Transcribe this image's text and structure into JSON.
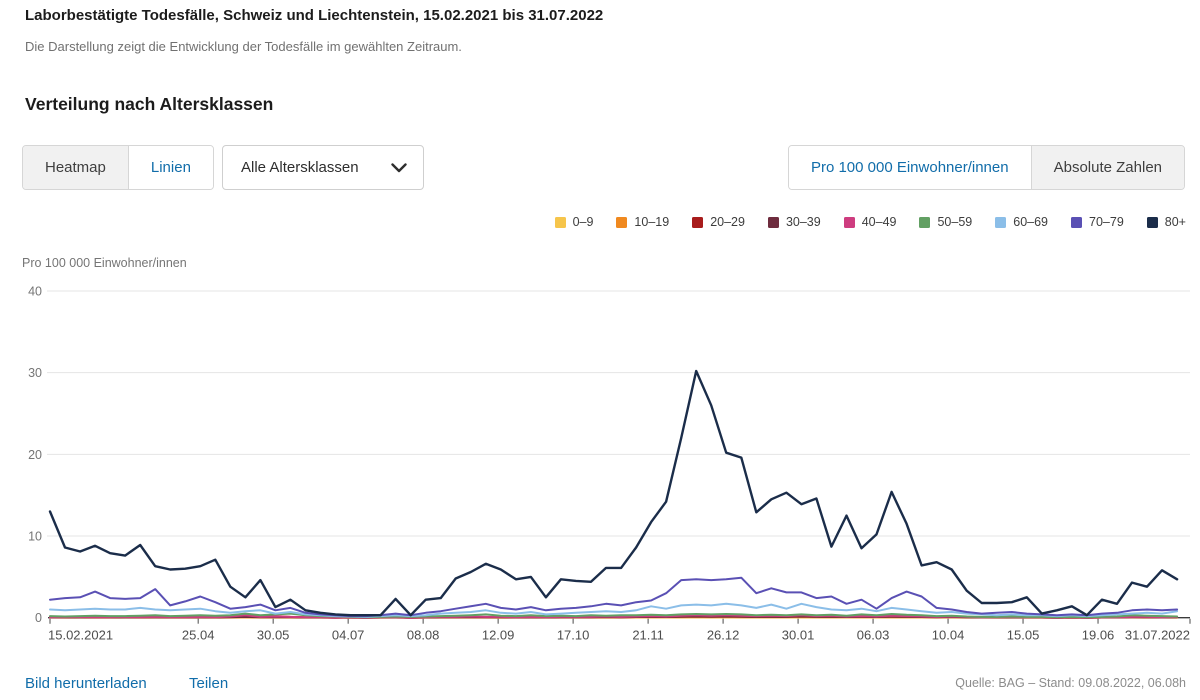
{
  "header": {
    "title": "Laborbestätigte Todesfälle, Schweiz und Liechtenstein, 15.02.2021 bis 31.07.2022",
    "subtitle": "Die Darstellung zeigt die Entwicklung der Todesfälle im gewählten Zeitraum."
  },
  "section": {
    "heading": "Verteilung nach Altersklassen"
  },
  "controls": {
    "view_toggle": [
      {
        "label": "Heatmap",
        "selected": false
      },
      {
        "label": "Linien",
        "selected": true
      }
    ],
    "age_filter": {
      "value": "Alle Altersklassen"
    },
    "unit_toggle": [
      {
        "label": "Pro 100 000 Einwohner/innen",
        "selected": true
      },
      {
        "label": "Absolute Zahlen",
        "selected": false
      }
    ]
  },
  "footer": {
    "download_label": "Bild herunterladen",
    "share_label": "Teilen",
    "source": "Quelle: BAG – Stand: 09.08.2022, 06.08h"
  },
  "colors": {
    "accent_blue": "#116daa",
    "inactive_bg": "#f1f1f1",
    "border": "#d6d6d6",
    "grid": "#e4e4e4",
    "axis": "#3a3a3a",
    "y_tick_text": "#757575",
    "x_tick_text": "#4d4d4d"
  },
  "chart_data": {
    "type": "line",
    "title": "Verteilung nach Altersklassen",
    "xlabel": "",
    "ylabel": "Pro 100 000 Einwohner/innen",
    "ylim": [
      0,
      40
    ],
    "yticks": [
      0,
      10,
      20,
      30,
      40
    ],
    "grid": "horizontal",
    "legend_position": "top-right",
    "weeks_total": 75.86,
    "x_ticks": [
      {
        "week": 0,
        "label": "15.02.2021"
      },
      {
        "week": 9.86,
        "label": "25.04"
      },
      {
        "week": 14.85,
        "label": "30.05"
      },
      {
        "week": 19.84,
        "label": "04.07"
      },
      {
        "week": 24.83,
        "label": "08.08"
      },
      {
        "week": 29.82,
        "label": "12.09"
      },
      {
        "week": 34.81,
        "label": "17.10"
      },
      {
        "week": 39.8,
        "label": "21.11"
      },
      {
        "week": 44.79,
        "label": "26.12"
      },
      {
        "week": 49.78,
        "label": "30.01"
      },
      {
        "week": 54.77,
        "label": "06.03"
      },
      {
        "week": 59.76,
        "label": "10.04"
      },
      {
        "week": 64.75,
        "label": "15.05"
      },
      {
        "week": 69.74,
        "label": "19.06"
      },
      {
        "week": 75.86,
        "label": "31.07.2022"
      }
    ],
    "series": [
      {
        "name": "0–9",
        "color": "#F6C54B",
        "values": [
          0.01,
          0,
          0.01,
          0,
          0,
          0.01,
          0,
          0.01,
          0,
          0,
          0.01,
          0,
          0.01,
          0.02,
          0.01,
          0.01,
          0.01,
          0,
          0,
          0,
          0,
          0,
          0,
          0.01,
          0,
          0,
          0.01,
          0.01,
          0.01,
          0.01,
          0,
          0,
          0.01,
          0,
          0.01,
          0.01,
          0.01,
          0.01,
          0.01,
          0.02,
          0.02,
          0.02,
          0.03,
          0.03,
          0.03,
          0.03,
          0.03,
          0.02,
          0.02,
          0.02,
          0.03,
          0.02,
          0.02,
          0.02,
          0.02,
          0.02,
          0.03,
          0.02,
          0.02,
          0.01,
          0.02,
          0.01,
          0.01,
          0,
          0.01,
          0,
          0,
          0,
          0,
          0,
          0.01,
          0.01,
          0.02,
          0.01,
          0.01,
          0.01
        ]
      },
      {
        "name": "10–19",
        "color": "#F0891F",
        "values": [
          0.02,
          0.02,
          0.03,
          0.02,
          0.02,
          0.03,
          0.02,
          0.03,
          0.02,
          0.02,
          0.03,
          0.02,
          0.03,
          0.05,
          0.03,
          0.03,
          0.03,
          0.02,
          0.02,
          0,
          0.02,
          0,
          0.02,
          0.02,
          0,
          0.02,
          0.02,
          0.03,
          0.03,
          0.03,
          0.02,
          0.02,
          0.03,
          0.02,
          0.02,
          0.03,
          0.03,
          0.03,
          0.03,
          0.05,
          0.05,
          0.05,
          0.06,
          0.08,
          0.06,
          0.08,
          0.06,
          0.05,
          0.06,
          0.05,
          0.08,
          0.05,
          0.06,
          0.05,
          0.05,
          0.05,
          0.06,
          0.05,
          0.05,
          0.03,
          0.05,
          0.03,
          0.02,
          0.02,
          0.03,
          0.02,
          0.02,
          0,
          0.02,
          0,
          0.02,
          0.02,
          0.03,
          0.03,
          0.02,
          0.03
        ]
      },
      {
        "name": "20–29",
        "color": "#A81C1C",
        "values": [
          0.05,
          0.02,
          0.05,
          0.05,
          0.02,
          0.05,
          0.05,
          0.08,
          0.02,
          0.05,
          0.05,
          0.05,
          0.1,
          0.35,
          0.1,
          0.2,
          0.1,
          0.05,
          0.02,
          0.02,
          0.02,
          0,
          0.02,
          0.05,
          0,
          0.02,
          0.05,
          0.05,
          0.08,
          0.05,
          0.05,
          0.02,
          0.05,
          0.02,
          0.05,
          0.05,
          0.05,
          0.08,
          0.05,
          0.08,
          0.1,
          0.1,
          0.15,
          0.2,
          0.15,
          0.2,
          0.15,
          0.1,
          0.15,
          0.1,
          0.3,
          0.15,
          0.2,
          0.1,
          0.15,
          0.1,
          0.2,
          0.15,
          0.1,
          0.08,
          0.1,
          0.05,
          0.05,
          0.02,
          0.05,
          0.02,
          0.02,
          0,
          0.02,
          0,
          0.02,
          0.05,
          0.08,
          0.05,
          0.05,
          0.05
        ]
      },
      {
        "name": "30–39",
        "color": "#6E2C3E",
        "values": [
          0.02,
          0.02,
          0.05,
          0.02,
          0.02,
          0.05,
          0.02,
          0.05,
          0.02,
          0.02,
          0.05,
          0.02,
          0.05,
          0.1,
          0.05,
          0.05,
          0.05,
          0.02,
          0.02,
          0,
          0.02,
          0,
          0.02,
          0.02,
          0,
          0.02,
          0.05,
          0.05,
          0.05,
          0.05,
          0.05,
          0.02,
          0.05,
          0.02,
          0.05,
          0.05,
          0.05,
          0.08,
          0.05,
          0.08,
          0.1,
          0.08,
          0.12,
          0.15,
          0.12,
          0.15,
          0.12,
          0.1,
          0.12,
          0.1,
          0.15,
          0.1,
          0.12,
          0.08,
          0.1,
          0.08,
          0.12,
          0.1,
          0.08,
          0.05,
          0.08,
          0.05,
          0.02,
          0.02,
          0.05,
          0.02,
          0.02,
          0,
          0.02,
          0,
          0.02,
          0.02,
          0.05,
          0.05,
          0.02,
          0.05
        ]
      },
      {
        "name": "40–49",
        "color": "#CE3C7F",
        "values": [
          0.05,
          0.05,
          0.1,
          0.05,
          0.05,
          0.1,
          0.05,
          0.1,
          0.05,
          0.05,
          0.1,
          0.05,
          0.15,
          0.3,
          0.1,
          0.15,
          0.1,
          0.05,
          0.05,
          0,
          0.05,
          0,
          0.05,
          0.05,
          0,
          0.05,
          0.1,
          0.1,
          0.15,
          0.1,
          0.1,
          0.05,
          0.1,
          0.05,
          0.1,
          0.1,
          0.1,
          0.15,
          0.1,
          0.15,
          0.2,
          0.15,
          0.25,
          0.3,
          0.25,
          0.3,
          0.25,
          0.2,
          0.25,
          0.2,
          0.3,
          0.2,
          0.25,
          0.15,
          0.2,
          0.15,
          0.25,
          0.2,
          0.15,
          0.1,
          0.15,
          0.1,
          0.05,
          0.05,
          0.1,
          0.05,
          0.05,
          0,
          0.05,
          0,
          0.05,
          0.05,
          0.1,
          0.1,
          0.05,
          0.1
        ]
      },
      {
        "name": "50–59",
        "color": "#62A063",
        "values": [
          0.2,
          0.15,
          0.2,
          0.25,
          0.2,
          0.2,
          0.25,
          0.3,
          0.2,
          0.25,
          0.3,
          0.25,
          0.3,
          0.5,
          0.3,
          0.4,
          0.5,
          0.3,
          0.2,
          0.15,
          0.1,
          0.05,
          0.1,
          0.15,
          0.1,
          0.15,
          0.2,
          0.25,
          0.3,
          0.4,
          0.25,
          0.2,
          0.3,
          0.2,
          0.25,
          0.2,
          0.3,
          0.25,
          0.3,
          0.3,
          0.35,
          0.3,
          0.4,
          0.45,
          0.4,
          0.45,
          0.4,
          0.3,
          0.35,
          0.3,
          0.4,
          0.3,
          0.35,
          0.25,
          0.4,
          0.3,
          0.45,
          0.35,
          0.3,
          0.2,
          0.25,
          0.15,
          0.1,
          0.1,
          0.15,
          0.1,
          0.1,
          0.05,
          0.1,
          0.05,
          0.1,
          0.15,
          0.3,
          0.25,
          0.2,
          0.15
        ]
      },
      {
        "name": "60–69",
        "color": "#8BBEE8",
        "values": [
          1,
          0.9,
          1,
          1.1,
          1,
          1,
          1.2,
          1,
          0.9,
          1,
          1.1,
          0.8,
          0.6,
          0.8,
          0.9,
          0.5,
          0.7,
          0.4,
          0.3,
          0.2,
          0.15,
          0.1,
          0.2,
          0.3,
          0.2,
          0.3,
          0.5,
          0.6,
          0.7,
          0.9,
          0.6,
          0.5,
          0.7,
          0.4,
          0.5,
          0.6,
          0.7,
          0.8,
          0.7,
          0.9,
          1.4,
          1.1,
          1.5,
          1.6,
          1.5,
          1.7,
          1.5,
          1.2,
          1.6,
          1.1,
          1.7,
          1.3,
          1,
          0.9,
          1.1,
          0.8,
          1.2,
          1,
          0.8,
          0.6,
          0.7,
          0.5,
          0.4,
          0.3,
          0.4,
          0.3,
          0.3,
          0.2,
          0.3,
          0.2,
          0.3,
          0.4,
          0.5,
          0.6,
          0.5,
          0.8
        ]
      },
      {
        "name": "70–79",
        "color": "#5A50B4",
        "values": [
          2.2,
          2.4,
          2.5,
          3.2,
          2.4,
          2.3,
          2.4,
          3.5,
          1.5,
          2,
          2.6,
          1.9,
          1.1,
          1.3,
          1.6,
          0.9,
          1.2,
          0.6,
          0.4,
          0.3,
          0.2,
          0.2,
          0.3,
          0.5,
          0.3,
          0.6,
          0.8,
          1.1,
          1.4,
          1.7,
          1.2,
          1,
          1.3,
          0.9,
          1.1,
          1.2,
          1.4,
          1.7,
          1.5,
          1.9,
          2.1,
          3,
          4.6,
          4.7,
          4.6,
          4.7,
          4.9,
          3,
          3.6,
          3.1,
          3.1,
          2.4,
          2.6,
          1.7,
          2.2,
          1.1,
          2.4,
          3.2,
          2.6,
          1.2,
          1,
          0.7,
          0.5,
          0.6,
          0.7,
          0.5,
          0.4,
          0.3,
          0.4,
          0.3,
          0.5,
          0.6,
          0.9,
          1,
          0.9,
          1
        ]
      },
      {
        "name": "80+",
        "color": "#1B2D4A",
        "values": [
          13,
          8.6,
          8.1,
          8.8,
          7.9,
          7.6,
          8.9,
          6.3,
          5.9,
          6,
          6.3,
          7.1,
          3.8,
          2.5,
          4.6,
          1.3,
          2.2,
          0.9,
          0.6,
          0.4,
          0.3,
          0.3,
          0.3,
          2.3,
          0.3,
          2.2,
          2.4,
          4.8,
          5.6,
          6.6,
          5.9,
          4.7,
          5,
          2.5,
          4.7,
          4.5,
          4.4,
          6.1,
          6.1,
          8.6,
          11.7,
          14.2,
          22,
          30.2,
          26,
          20.2,
          19.6,
          12.9,
          14.5,
          15.3,
          13.9,
          14.6,
          8.7,
          12.5,
          8.5,
          10.2,
          15.4,
          11.5,
          6.4,
          6.8,
          5.9,
          3.3,
          1.8,
          1.8,
          1.9,
          2.5,
          0.5,
          0.9,
          1.4,
          0.3,
          2.2,
          1.7,
          4.3,
          3.8,
          5.8,
          4.7
        ]
      }
    ]
  }
}
